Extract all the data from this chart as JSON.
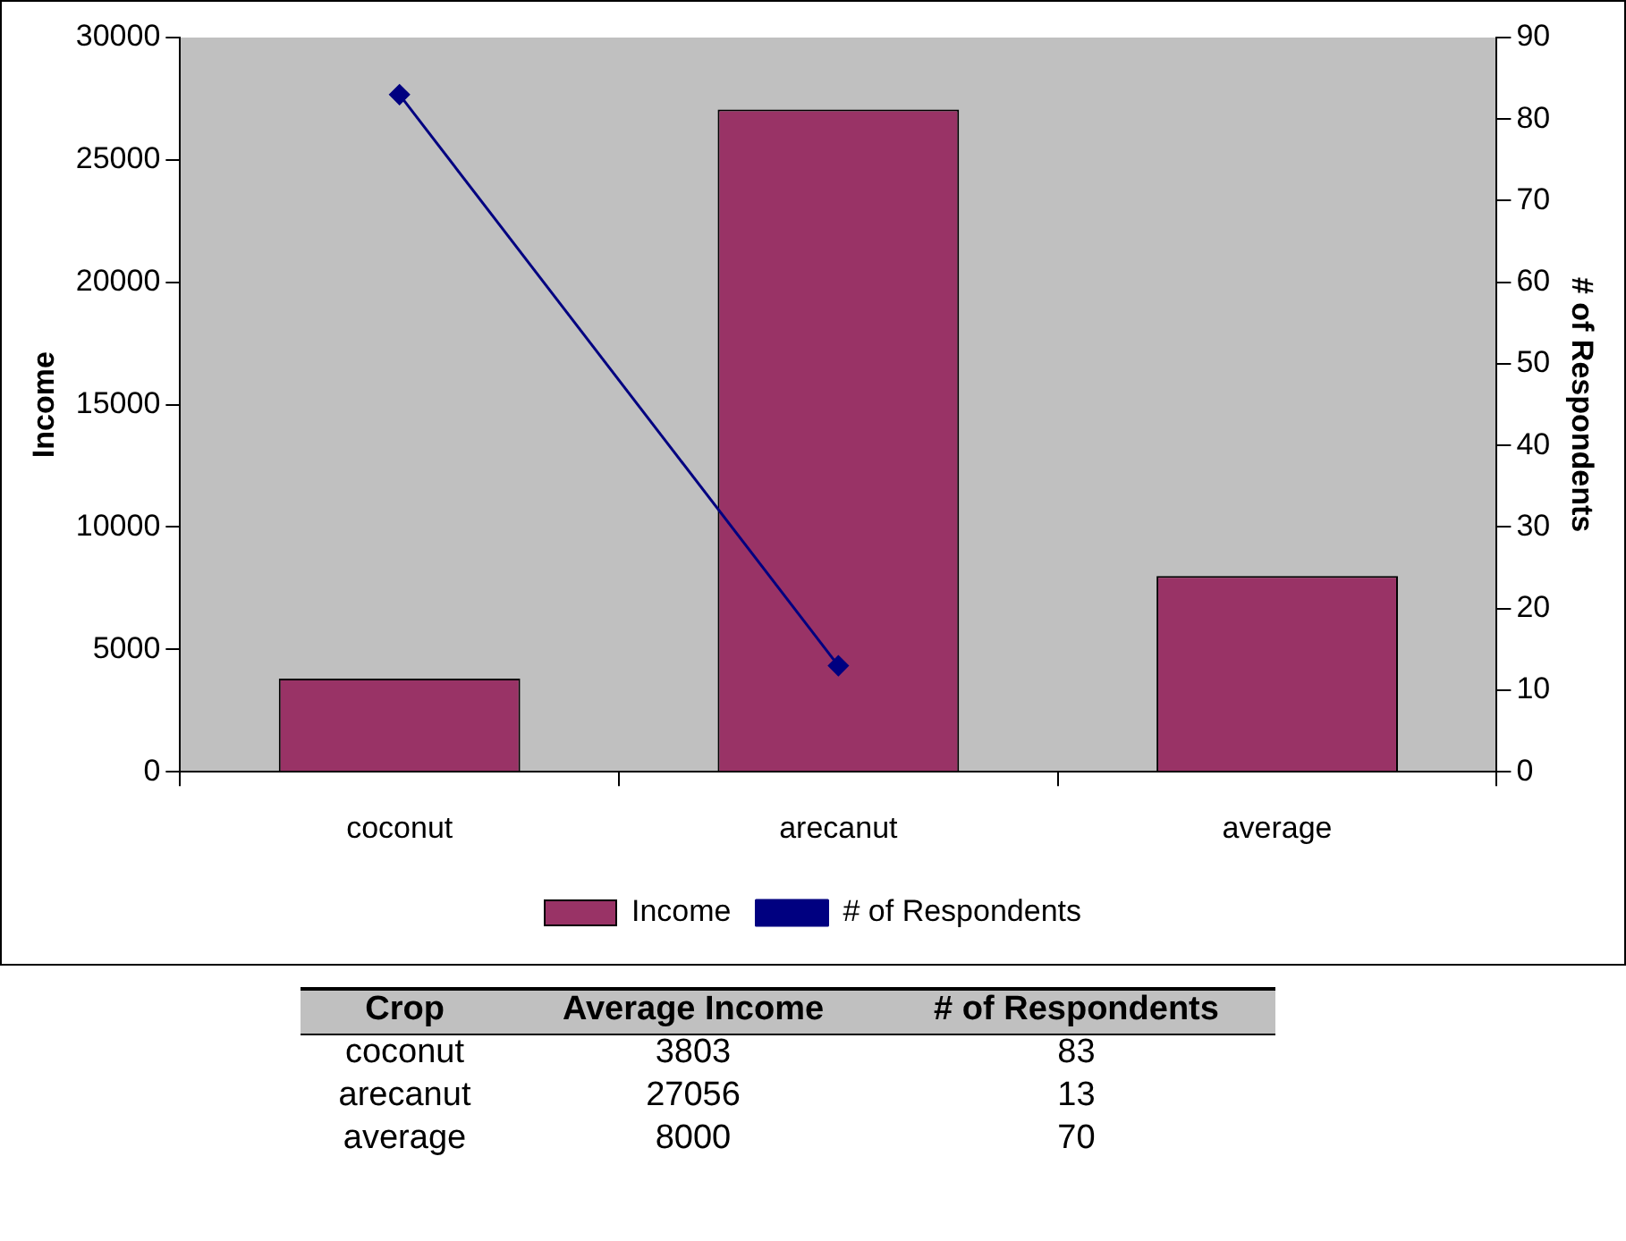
{
  "chart_data": [
    {
      "type": "bar",
      "categories": [
        "coconut",
        "arecanut",
        "average"
      ],
      "series": [
        {
          "name": "Income",
          "type": "bar",
          "color": "#993366",
          "values": [
            3803,
            27056,
            8000
          ]
        },
        {
          "name": "# of Respondents",
          "type": "line",
          "axis": "y2",
          "color": "#000080",
          "values": [
            83,
            13,
            null
          ],
          "marker": "diamond"
        }
      ],
      "ylabel": "Income",
      "y2label": "# of Respondents",
      "ylim": [
        0,
        30000
      ],
      "yticks": [
        0,
        5000,
        10000,
        15000,
        20000,
        25000,
        30000
      ],
      "y2lim": [
        0,
        90
      ],
      "y2ticks": [
        0,
        10,
        20,
        30,
        40,
        50,
        60,
        70,
        80,
        90
      ],
      "grid": false,
      "legend": "bottom"
    },
    {
      "type": "other",
      "categories": [
        "coconut",
        "arecanut",
        "average"
      ],
      "data_labels": true,
      "series": [
        {
          "name": "Average Income",
          "values": [
            3803,
            27056,
            8000
          ]
        },
        {
          "name": "# of Respondents",
          "values": [
            83,
            13,
            70
          ]
        }
      ],
      "annotations": [
        "Crop"
      ]
    }
  ]
}
